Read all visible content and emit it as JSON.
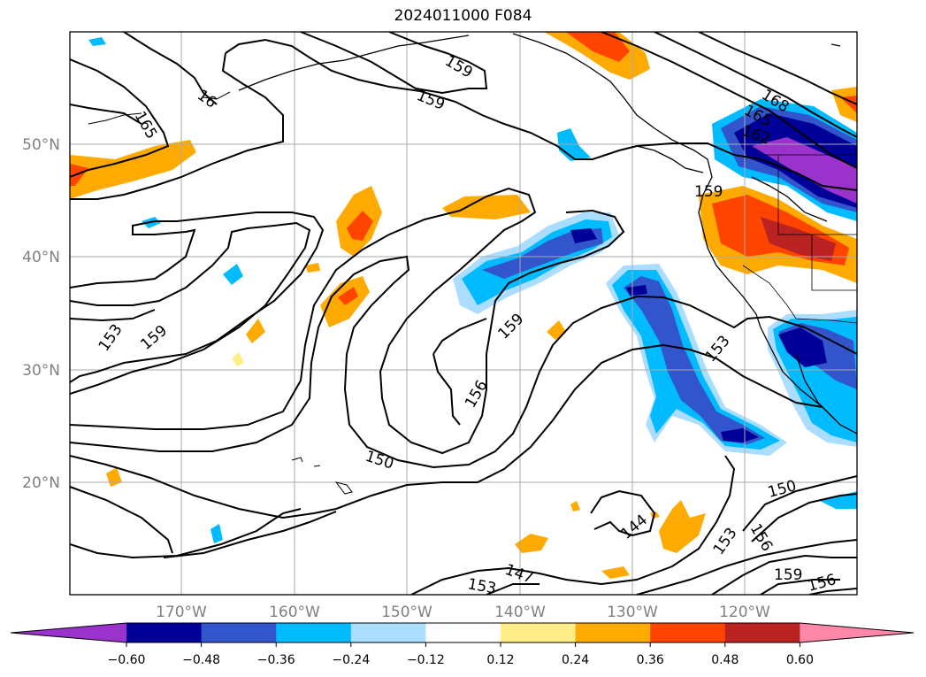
{
  "title": "2024011000 F084",
  "lat_labels": [
    "50°N",
    "40°N",
    "30°N",
    "20°N"
  ],
  "lon_labels": [
    "170°W",
    "160°W",
    "150°W",
    "140°W",
    "130°W",
    "120°W"
  ],
  "contour_labels": [
    "168",
    "165",
    "162",
    "159",
    "159",
    "159",
    "165",
    "16",
    "153",
    "159",
    "159",
    "156",
    "150",
    "153",
    "150",
    "156",
    "153",
    "156",
    "147",
    "153",
    "144"
  ],
  "colorbar": {
    "levels": [
      "−0.60",
      "−0.48",
      "−0.36",
      "−0.24",
      "−0.12",
      "0.12",
      "0.24",
      "0.36",
      "0.48",
      "0.60"
    ],
    "colors": [
      "#9933cc",
      "#000099",
      "#3355cc",
      "#00bbff",
      "#aaddff",
      "#ffffff",
      "#ffee88",
      "#ffaa00",
      "#ff4400",
      "#bb2222",
      "#ff88aa"
    ]
  },
  "colors": {
    "grid": "#aaaaaa",
    "contour": "#000000",
    "coast": "#000000",
    "tick_label": "#808080"
  }
}
